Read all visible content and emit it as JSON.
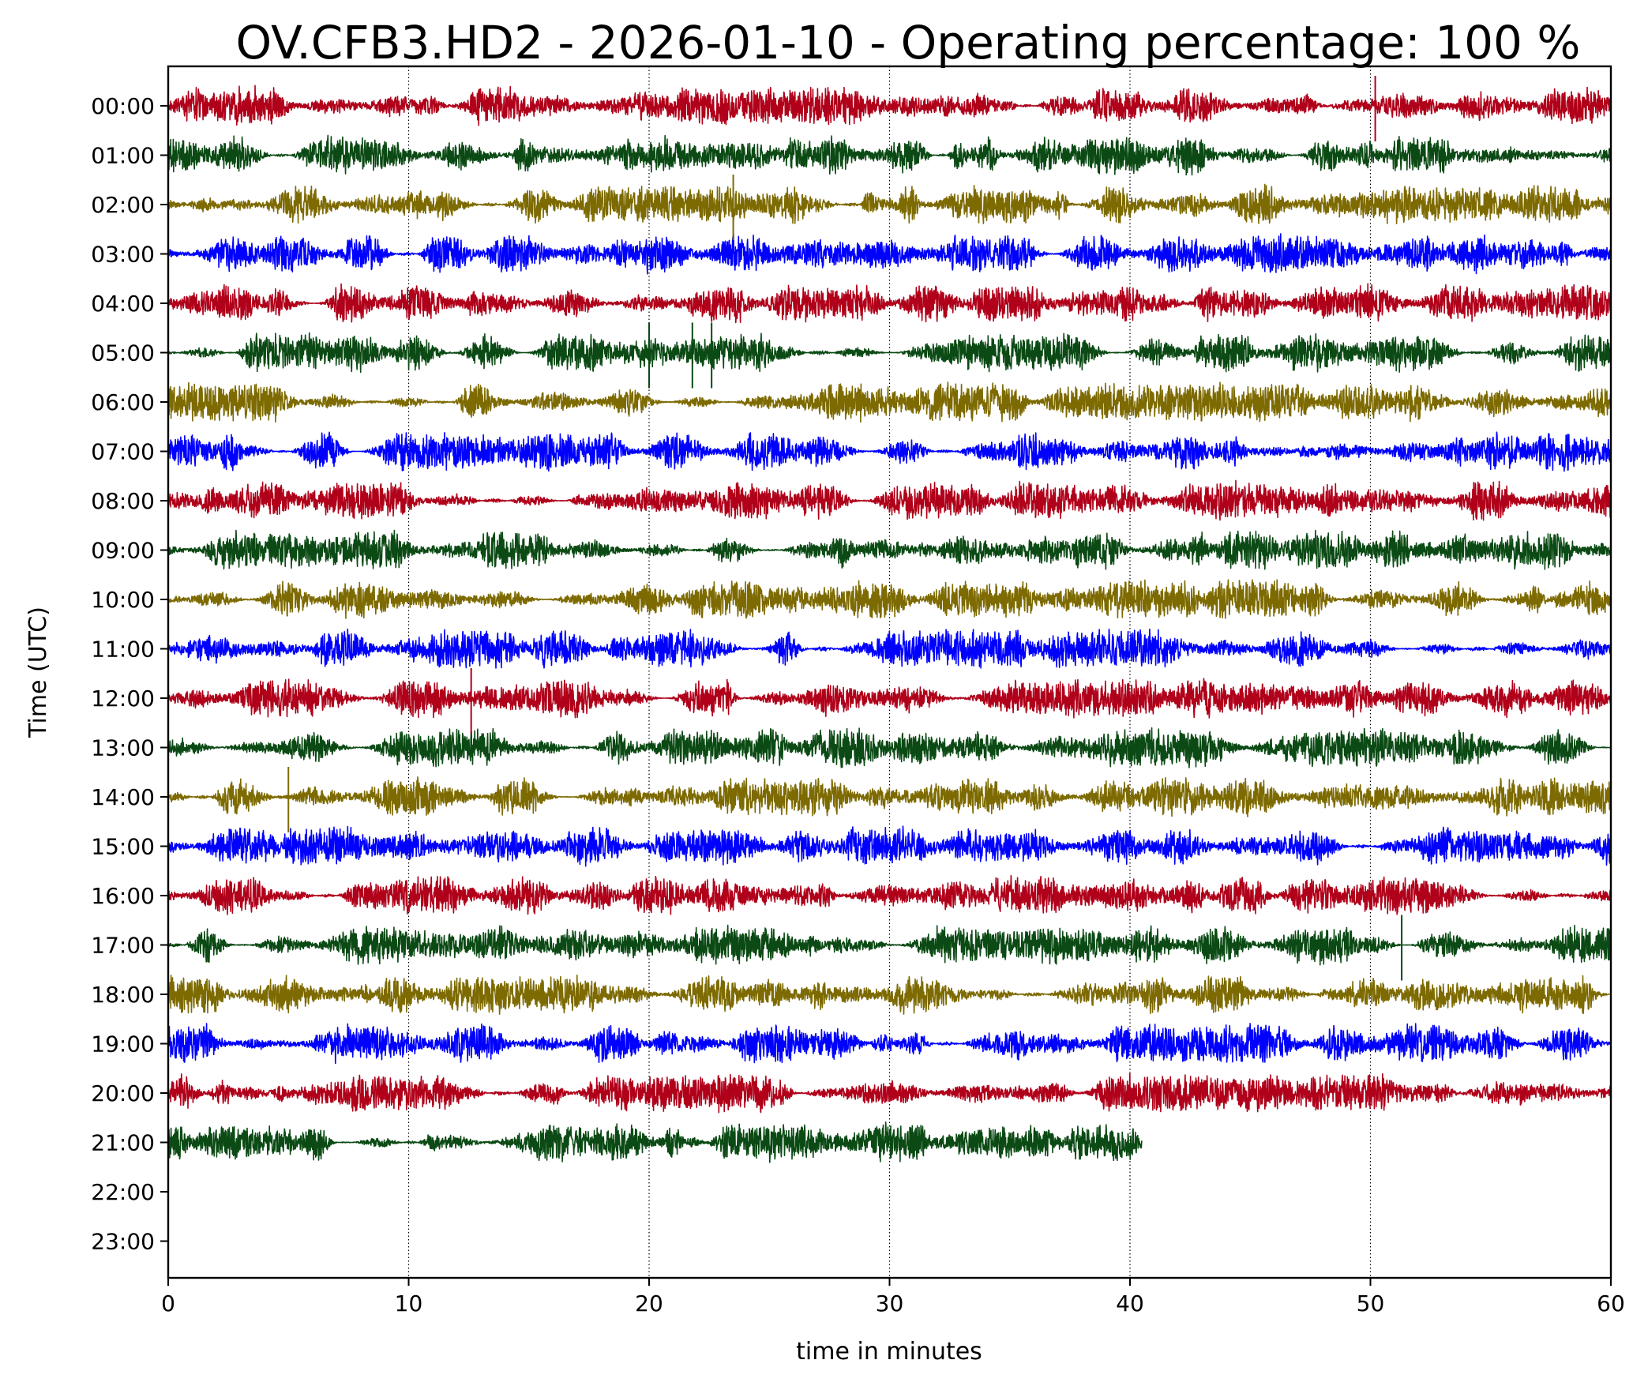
{
  "chart_data": {
    "type": "line",
    "subtype": "helicorder",
    "title": "OV.CFB3.HD2 - 2026-01-10 - Operating percentage: 100 %",
    "xlabel": "time in minutes",
    "ylabel": "Time (UTC)",
    "xlim": [
      0,
      60
    ],
    "x_ticks": [
      "0",
      "10",
      "20",
      "30",
      "40",
      "50",
      "60"
    ],
    "grid": "vertical dotted lines at x = 10, 20, 30, 40, 50",
    "row_labels": [
      "00:00",
      "01:00",
      "02:00",
      "03:00",
      "04:00",
      "05:00",
      "06:00",
      "07:00",
      "08:00",
      "09:00",
      "10:00",
      "11:00",
      "12:00",
      "13:00",
      "14:00",
      "15:00",
      "16:00",
      "17:00",
      "18:00",
      "19:00",
      "20:00",
      "21:00",
      "22:00",
      "23:00"
    ],
    "color_cycle": [
      "#b0001a",
      "#0b4a14",
      "#7d6a00",
      "#0000ff"
    ],
    "series": [
      {
        "row": "00:00",
        "color": "#b0001a",
        "x_end": 60
      },
      {
        "row": "01:00",
        "color": "#0b4a14",
        "x_end": 60
      },
      {
        "row": "02:00",
        "color": "#7d6a00",
        "x_end": 60
      },
      {
        "row": "03:00",
        "color": "#0000ff",
        "x_end": 60
      },
      {
        "row": "04:00",
        "color": "#b0001a",
        "x_end": 60
      },
      {
        "row": "05:00",
        "color": "#0b4a14",
        "x_end": 60
      },
      {
        "row": "06:00",
        "color": "#7d6a00",
        "x_end": 60
      },
      {
        "row": "07:00",
        "color": "#0000ff",
        "x_end": 60
      },
      {
        "row": "08:00",
        "color": "#b0001a",
        "x_end": 60
      },
      {
        "row": "09:00",
        "color": "#0b4a14",
        "x_end": 60
      },
      {
        "row": "10:00",
        "color": "#7d6a00",
        "x_end": 60
      },
      {
        "row": "11:00",
        "color": "#0000ff",
        "x_end": 60
      },
      {
        "row": "12:00",
        "color": "#b0001a",
        "x_end": 60
      },
      {
        "row": "13:00",
        "color": "#0b4a14",
        "x_end": 60
      },
      {
        "row": "14:00",
        "color": "#7d6a00",
        "x_end": 60
      },
      {
        "row": "15:00",
        "color": "#0000ff",
        "x_end": 60
      },
      {
        "row": "16:00",
        "color": "#b0001a",
        "x_end": 60
      },
      {
        "row": "17:00",
        "color": "#0b4a14",
        "x_end": 60
      },
      {
        "row": "18:00",
        "color": "#7d6a00",
        "x_end": 60
      },
      {
        "row": "19:00",
        "color": "#0000ff",
        "x_end": 60
      },
      {
        "row": "20:00",
        "color": "#b0001a",
        "x_end": 60
      },
      {
        "row": "21:00",
        "color": "#0b4a14",
        "x_end": 40.5
      }
    ],
    "spikes": [
      {
        "row": "00:00",
        "x": 50.2
      },
      {
        "row": "02:00",
        "x": 23.5
      },
      {
        "row": "05:00",
        "x": 20.0
      },
      {
        "row": "05:00",
        "x": 21.8
      },
      {
        "row": "05:00",
        "x": 22.6
      },
      {
        "row": "12:00",
        "x": 12.6
      },
      {
        "row": "14:00",
        "x": 5.0
      },
      {
        "row": "15:00",
        "x": 60.0
      },
      {
        "row": "17:00",
        "x": 51.3
      }
    ]
  }
}
